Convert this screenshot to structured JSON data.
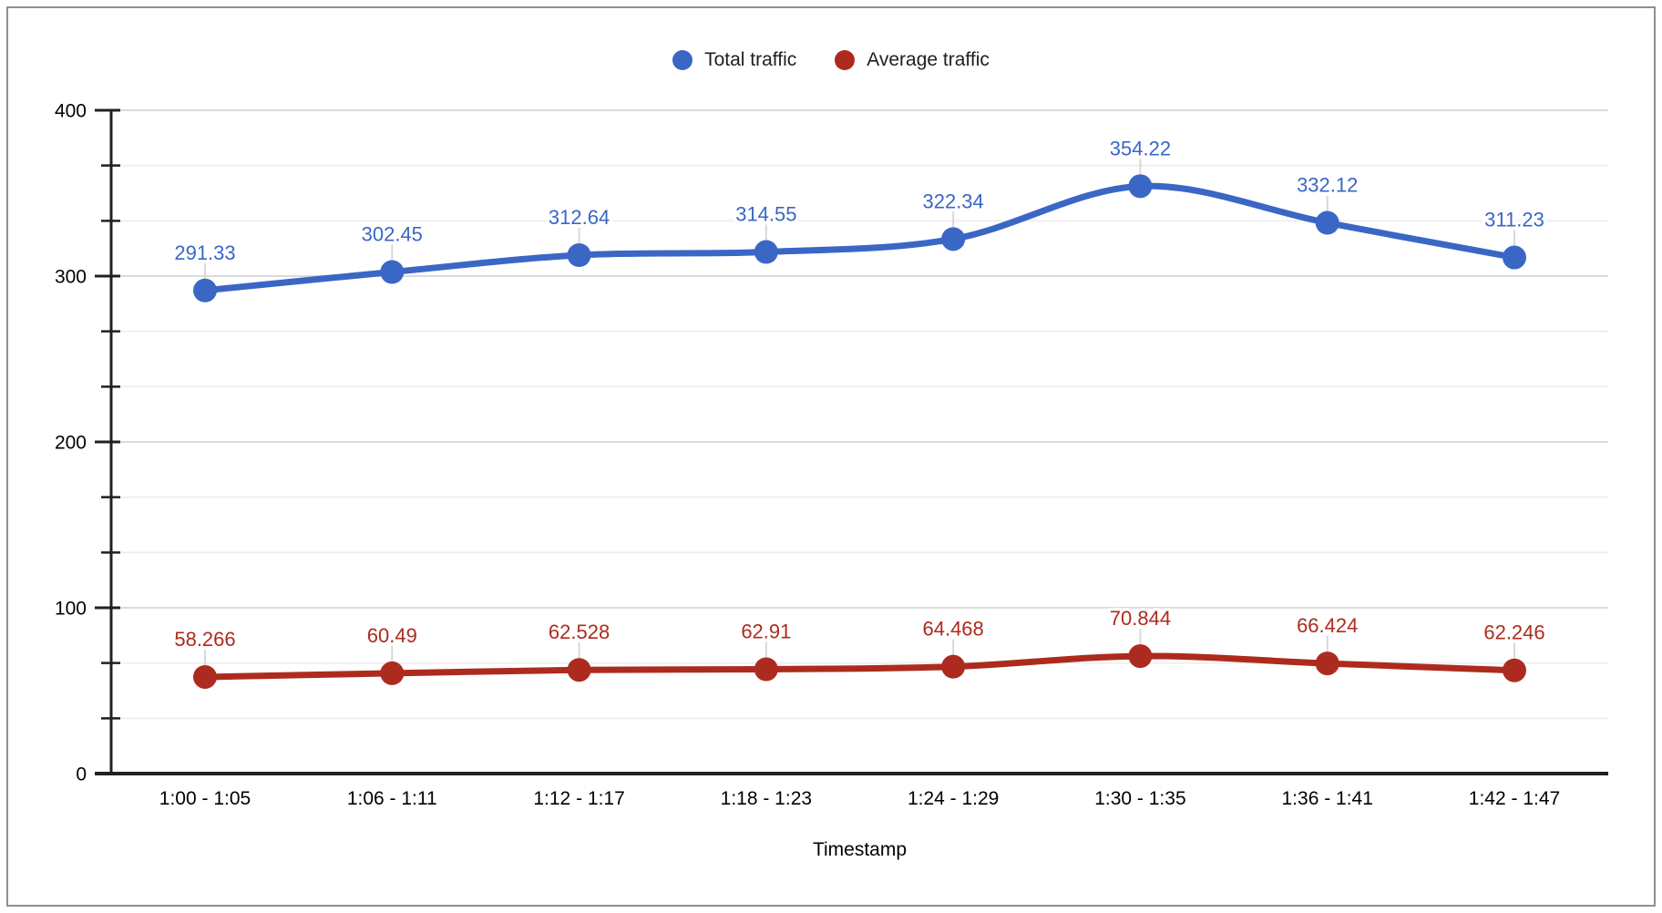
{
  "chart_data": {
    "type": "line",
    "title": "",
    "xlabel": "Timestamp",
    "ylabel": "",
    "categories": [
      "1:00 - 1:05",
      "1:06 - 1:11",
      "1:12 - 1:17",
      "1:18 - 1:23",
      "1:24 - 1:29",
      "1:30 - 1:35",
      "1:36 - 1:41",
      "1:42 - 1:47"
    ],
    "series": [
      {
        "name": "Total traffic",
        "color": "#3A66C6",
        "values": [
          291.33,
          302.45,
          312.64,
          314.55,
          322.34,
          354.22,
          332.12,
          311.23
        ]
      },
      {
        "name": "Average traffic",
        "color": "#AD2B1E",
        "values": [
          58.266,
          60.49,
          62.528,
          62.91,
          64.468,
          70.844,
          66.424,
          62.246
        ]
      }
    ],
    "ylim": [
      0,
      400
    ],
    "y_major_ticks": [
      0,
      100,
      200,
      300,
      400
    ],
    "y_tick_labels": [
      "0",
      "100",
      "200",
      "300",
      "400"
    ],
    "y_minor_divisions_per_major": 3,
    "grid": true,
    "smooth": true,
    "point_labels": true,
    "legend_position": "top",
    "style": {
      "background": "#FFFFFF",
      "border": "#8F8F8F",
      "major_grid": "#DBDBDB",
      "minor_grid": "#EFEFEF",
      "axis": "#212121",
      "tick_text": "#000000",
      "legend_text": "#1F1F1F",
      "leader_line": "#D8D8D8",
      "label_halo": "#FFFFFF"
    }
  }
}
